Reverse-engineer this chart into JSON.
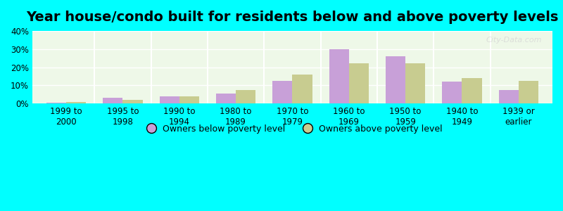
{
  "title": "Year house/condo built for residents below and above poverty levels",
  "categories": [
    "1999 to\n2000",
    "1995 to\n1998",
    "1990 to\n1994",
    "1980 to\n1989",
    "1970 to\n1979",
    "1960 to\n1969",
    "1950 to\n1959",
    "1940 to\n1949",
    "1939 or\nearlier"
  ],
  "below_poverty": [
    0.5,
    3.0,
    4.0,
    5.5,
    12.5,
    30.0,
    26.0,
    12.0,
    7.5
  ],
  "above_poverty": [
    1.0,
    2.0,
    4.0,
    7.5,
    16.0,
    22.0,
    22.0,
    14.0,
    12.5
  ],
  "below_color": "#c8a0d8",
  "above_color": "#c8cc90",
  "background_color": "#00ffff",
  "plot_bg_color": "#eef8e8",
  "ylim": [
    0,
    40
  ],
  "yticks": [
    0,
    10,
    20,
    30,
    40
  ],
  "ytick_labels": [
    "0%",
    "10%",
    "20%",
    "30%",
    "40%"
  ],
  "legend_below_label": "Owners below poverty level",
  "legend_above_label": "Owners above poverty level",
  "title_fontsize": 14,
  "tick_fontsize": 8.5,
  "legend_fontsize": 9,
  "bar_width": 0.35
}
